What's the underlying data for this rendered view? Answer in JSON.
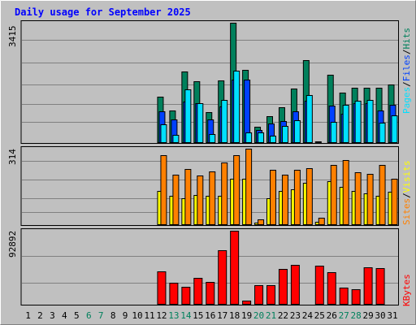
{
  "colors": {
    "background": "#c0c0c0",
    "title": "#0000ff",
    "hits": "#00805c",
    "files": "#0040ff",
    "pages": "#00e0ff",
    "visits": "#ffff00",
    "sites": "#ff8000",
    "kbytes": "#ff0000",
    "weekend_label": "#00805c",
    "weekday_label": "#000000"
  },
  "chart_data": {
    "type": "bar",
    "title": "Daily usage for September 2025",
    "days": [
      "1",
      "2",
      "3",
      "4",
      "5",
      "6",
      "7",
      "8",
      "9",
      "10",
      "11",
      "12",
      "13",
      "14",
      "15",
      "16",
      "17",
      "18",
      "19",
      "20",
      "21",
      "22",
      "23",
      "24",
      "25",
      "26",
      "27",
      "28",
      "29",
      "30",
      "31"
    ],
    "weekend_days": [
      "6",
      "7",
      "13",
      "14",
      "20",
      "21",
      "27",
      "28"
    ],
    "panels": [
      {
        "name": "top",
        "ymax_label": "3415",
        "ymax": 3415,
        "series": [
          {
            "name": "Hits",
            "values": [
              0,
              0,
              0,
              0,
              0,
              0,
              0,
              0,
              0,
              0,
              0,
              1320,
              920,
              2035,
              1760,
              880,
              1780,
              3415,
              2085,
              460,
              760,
              1020,
              1535,
              2365,
              40,
              1935,
              1420,
              1560,
              1560,
              1580,
              1650
            ]
          },
          {
            "name": "Files",
            "values": [
              0,
              0,
              0,
              0,
              0,
              0,
              0,
              0,
              0,
              0,
              0,
              900,
              680,
              1180,
              1140,
              660,
              1030,
              1810,
              1800,
              370,
              560,
              630,
              900,
              1200,
              30,
              1050,
              840,
              1130,
              1130,
              920,
              1080
            ]
          },
          {
            "name": "Pages",
            "values": [
              0,
              0,
              0,
              0,
              0,
              0,
              0,
              0,
              0,
              0,
              0,
              520,
              220,
              1515,
              1140,
              260,
              1220,
              2045,
              310,
              300,
              210,
              480,
              650,
              1370,
              0,
              610,
              1090,
              1190,
              1215,
              580,
              780
            ]
          }
        ],
        "legend": [
          "Pages",
          "Files",
          "Hits"
        ]
      },
      {
        "name": "middle",
        "ymax_label": "314",
        "ymax": 314,
        "series": [
          {
            "name": "Visits",
            "values": [
              0,
              0,
              0,
              0,
              0,
              0,
              0,
              0,
              0,
              0,
              0,
              140,
              120,
              110,
              123,
              120,
              120,
              190,
              190,
              10,
              110,
              140,
              148,
              175,
              15,
              180,
              158,
              140,
              130,
              120,
              138
            ]
          },
          {
            "name": "Sites",
            "values": [
              0,
              0,
              0,
              0,
              0,
              0,
              0,
              0,
              0,
              0,
              0,
              287,
              208,
              230,
              205,
              220,
              258,
              288,
              314,
              23,
              228,
              208,
              227,
              233,
              29,
              246,
              267,
              218,
              212,
              246,
              190
            ]
          }
        ],
        "legend": [
          "Sites",
          "Visits"
        ]
      },
      {
        "name": "bottom",
        "ymax_label": "92892",
        "ymax": 92892,
        "series": [
          {
            "name": "KBytes",
            "values": [
              0,
              0,
              0,
              0,
              0,
              0,
              0,
              0,
              0,
              0,
              0,
              42000,
              28000,
              22000,
              34000,
              29000,
              68000,
              92892,
              5000,
              25000,
              24000,
              45000,
              50000,
              1500,
              49000,
              41000,
              21000,
              19000,
              47000,
              46000,
              0
            ]
          }
        ],
        "legend": [
          "KBytes"
        ]
      }
    ]
  }
}
